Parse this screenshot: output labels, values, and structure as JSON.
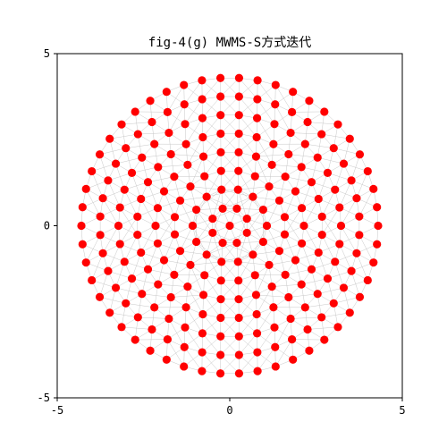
{
  "chart_data": {
    "type": "scatter",
    "title": "fig-4(g) MWMS-S方式迭代",
    "xlabel": "",
    "ylabel": "",
    "xlim": [
      -5,
      5
    ],
    "ylim": [
      -5,
      5
    ],
    "x_ticks": [
      "-5",
      "0",
      "5"
    ],
    "y_ticks": [
      "-5",
      "0",
      "5"
    ],
    "grid": false,
    "point_color": "#ff0000",
    "edge_color": "#c8c8c8",
    "center": [
      0,
      0
    ],
    "radius": 4.3,
    "ring_counts": [
      1,
      8,
      14,
      20,
      26,
      32,
      38,
      44,
      50
    ],
    "shape": "disk"
  }
}
